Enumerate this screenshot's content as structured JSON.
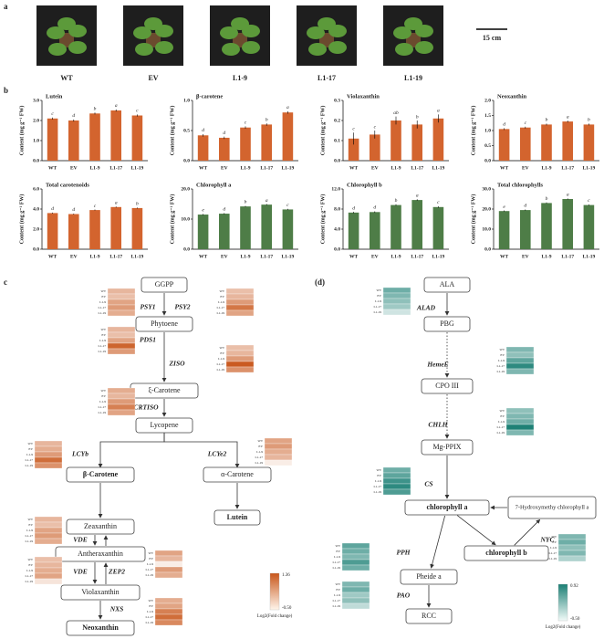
{
  "panel_a": {
    "label": "a",
    "samples": [
      "WT",
      "EV",
      "L1-9",
      "L1-17",
      "L1-19"
    ],
    "scale_bar": "15 cm"
  },
  "panel_b_label": "b",
  "chart_data": [
    {
      "type": "bar",
      "title": "Lutein",
      "y_label": "Content (mg g⁻¹ FW)",
      "categories": [
        "WT",
        "EV",
        "L1-9",
        "L1-17",
        "L1-19"
      ],
      "values": [
        2.1,
        2.0,
        2.35,
        2.5,
        2.25
      ],
      "errors": [
        0.05,
        0.05,
        0.05,
        0.05,
        0.05
      ],
      "letters": [
        "c",
        "d",
        "b",
        "a",
        "c"
      ],
      "color": "#d3642e",
      "ylim": [
        0,
        3
      ],
      "yticks": [
        {
          "value": 0,
          "label": "0.0"
        },
        {
          "value": 1,
          "label": "1.0"
        },
        {
          "value": 2,
          "label": "2.0"
        },
        {
          "value": 3,
          "label": "3.0"
        }
      ]
    },
    {
      "type": "bar",
      "title": "β-carotene",
      "y_label": "Content (mg g⁻¹ FW)",
      "categories": [
        "WT",
        "EV",
        "L1-9",
        "L1-17",
        "L1-19"
      ],
      "values": [
        0.42,
        0.38,
        0.55,
        0.6,
        0.8
      ],
      "errors": [
        0.02,
        0.02,
        0.02,
        0.02,
        0.02
      ],
      "letters": [
        "d",
        "d",
        "c",
        "b",
        "a"
      ],
      "color": "#d3642e",
      "ylim": [
        0,
        1
      ],
      "yticks": [
        {
          "value": 0,
          "label": "0.0"
        },
        {
          "value": 0.5,
          "label": "0.5"
        },
        {
          "value": 1,
          "label": "1.0"
        }
      ]
    },
    {
      "type": "bar",
      "title": "Violaxanthin",
      "y_label": "Content (mg g⁻¹ FW)",
      "categories": [
        "WT",
        "EV",
        "L1-9",
        "L1-17",
        "L1-19"
      ],
      "values": [
        0.11,
        0.13,
        0.2,
        0.18,
        0.21
      ],
      "errors": [
        0.03,
        0.02,
        0.02,
        0.02,
        0.02
      ],
      "letters": [
        "c",
        "c",
        "ab",
        "b",
        "a"
      ],
      "color": "#d3642e",
      "ylim": [
        0,
        0.3
      ],
      "yticks": [
        {
          "value": 0,
          "label": "0.0"
        },
        0.1,
        0.2,
        0.3
      ]
    },
    {
      "type": "bar",
      "title": "Neoxanthin",
      "y_label": "Content (mg g⁻¹ FW)",
      "categories": [
        "WT",
        "EV",
        "L1-9",
        "L1-17",
        "L1-19"
      ],
      "values": [
        1.05,
        1.1,
        1.2,
        1.3,
        1.2
      ],
      "errors": [
        0.03,
        0.03,
        0.03,
        0.03,
        0.03
      ],
      "letters": [
        "d",
        "c",
        "b",
        "a",
        "b"
      ],
      "color": "#d3642e",
      "ylim": [
        0,
        2
      ],
      "yticks": [
        {
          "value": 0,
          "label": "0.0"
        },
        0.5,
        {
          "value": 1,
          "label": "1.0"
        },
        1.5,
        {
          "value": 2,
          "label": "2.0"
        }
      ]
    },
    {
      "type": "bar",
      "title": "Total carotenoids",
      "y_label": "Content (mg g⁻¹ FW)",
      "categories": [
        "WT",
        "EV",
        "L1-9",
        "L1-17",
        "L1-19"
      ],
      "values": [
        3.6,
        3.5,
        3.9,
        4.2,
        4.1
      ],
      "errors": [
        0.05,
        0.05,
        0.05,
        0.05,
        0.05
      ],
      "letters": [
        "d",
        "d",
        "c",
        "a",
        "b"
      ],
      "color": "#d3642e",
      "ylim": [
        0,
        6
      ],
      "yticks": [
        {
          "value": 0,
          "label": "0.0"
        },
        {
          "value": 2,
          "label": "2.0"
        },
        {
          "value": 4,
          "label": "4.0"
        },
        {
          "value": 6,
          "label": "6.0"
        }
      ]
    },
    {
      "type": "bar",
      "title": "Chlorophyll a",
      "y_label": "Content (mg g⁻¹ FW)",
      "categories": [
        "WT",
        "EV",
        "L1-9",
        "L1-17",
        "L1-19"
      ],
      "values": [
        11.5,
        11.8,
        14.2,
        14.8,
        13.2
      ],
      "errors": [
        0.2,
        0.2,
        0.2,
        0.2,
        0.2
      ],
      "letters": [
        "e",
        "d",
        "b",
        "a",
        "c"
      ],
      "color": "#4e7d47",
      "ylim": [
        0,
        20
      ],
      "yticks": [
        {
          "value": 0,
          "label": "0.0"
        },
        {
          "value": 10,
          "label": "10.0"
        },
        {
          "value": 20,
          "label": "20.0"
        }
      ]
    },
    {
      "type": "bar",
      "title": "Chlorophyll b",
      "y_label": "Content (mg g⁻¹ FW)",
      "categories": [
        "WT",
        "EV",
        "L1-9",
        "L1-17",
        "L1-19"
      ],
      "values": [
        7.3,
        7.4,
        8.8,
        9.8,
        8.4
      ],
      "errors": [
        0.15,
        0.15,
        0.15,
        0.15,
        0.15
      ],
      "letters": [
        "d",
        "d",
        "b",
        "a",
        "c"
      ],
      "color": "#4e7d47",
      "ylim": [
        0,
        12
      ],
      "yticks": [
        {
          "value": 0,
          "label": "0.0"
        },
        {
          "value": 4,
          "label": "4.0"
        },
        {
          "value": 8,
          "label": "8.0"
        },
        {
          "value": 12,
          "label": "12.0"
        }
      ]
    },
    {
      "type": "bar",
      "title": "Total chlorophylls",
      "y_label": "Content (mg g⁻¹ FW)",
      "categories": [
        "WT",
        "EV",
        "L1-9",
        "L1-17",
        "L1-19"
      ],
      "values": [
        19,
        19.5,
        23,
        25,
        22
      ],
      "errors": [
        0.3,
        0.3,
        0.3,
        0.3,
        0.3
      ],
      "letters": [
        "e",
        "d",
        "b",
        "a",
        "c"
      ],
      "color": "#4e7d47",
      "ylim": [
        0,
        30
      ],
      "yticks": [
        {
          "value": 0,
          "label": "0.0"
        },
        {
          "value": 10,
          "label": "10.0"
        },
        {
          "value": 20,
          "label": "20.0"
        },
        {
          "value": 30,
          "label": "30.0"
        }
      ]
    }
  ],
  "panel_c": {
    "label": "c",
    "nodes": [
      {
        "label": "GGPP",
        "highlight": false
      },
      {
        "label": "Phytoene",
        "highlight": false
      },
      {
        "label": "ξ-Carotene",
        "highlight": false
      },
      {
        "label": "Lycopene",
        "highlight": false
      },
      {
        "label": "β-Carotene",
        "highlight": true
      },
      {
        "label": "α-Carotene",
        "highlight": false
      },
      {
        "label": "Lutein",
        "highlight": true
      },
      {
        "label": "Zeaxanthin",
        "highlight": false
      },
      {
        "label": "Antheraxanthin",
        "highlight": false
      },
      {
        "label": "Violaxanthin",
        "highlight": false
      },
      {
        "label": "Neoxanthin",
        "highlight": true
      }
    ],
    "rows": [
      "WT",
      "EV",
      "L1-9",
      "L1-17",
      "L1-19"
    ],
    "genes": [
      {
        "name": "PSY1",
        "values": [
          0.3,
          0.2,
          0.5,
          0.6,
          0.4
        ]
      },
      {
        "name": "PSY2",
        "values": [
          0.2,
          0.3,
          0.6,
          1.0,
          0.5
        ]
      },
      {
        "name": "PDS1",
        "values": [
          0.3,
          0.2,
          0.5,
          1.2,
          0.6
        ]
      },
      {
        "name": "ZISO",
        "values": [
          0.2,
          0.3,
          0.6,
          1.3,
          0.7
        ]
      },
      {
        "name": "CRTISO",
        "values": [
          0.4,
          0.3,
          0.6,
          0.9,
          0.5
        ]
      },
      {
        "name": "LCYb",
        "values": [
          0.3,
          0.4,
          0.6,
          1.1,
          0.7
        ]
      },
      {
        "name": "LCYe2",
        "values": [
          0.5,
          0.6,
          0.4,
          0.3,
          -0.3
        ]
      },
      {
        "name": "VDE",
        "values": [
          0.3,
          0.2,
          0.5,
          0.6,
          0.4
        ]
      },
      {
        "name": "VDE",
        "values": [
          0.2,
          0.3,
          0.4,
          0.5,
          -0.2
        ]
      },
      {
        "name": "ZEP2",
        "values": [
          0.5,
          0.3,
          -0.3,
          0.6,
          0.4
        ]
      },
      {
        "name": "NXS",
        "values": [
          0.4,
          0.5,
          0.9,
          1.1,
          0.8
        ]
      }
    ],
    "color": "#c8561a",
    "scale_max": {
      "value": 1.36,
      "label": "1.36"
    },
    "scale_min": {
      "value": -0.5,
      "label": "-0.50"
    },
    "scale_title": "Log2(Fold change)"
  },
  "panel_d": {
    "label": "(d)",
    "nodes": [
      {
        "label": "ALA",
        "highlight": false
      },
      {
        "label": "PBG",
        "highlight": false
      },
      {
        "label": "CPO III",
        "highlight": false
      },
      {
        "label": "Mg-PPIX",
        "highlight": false
      },
      {
        "label": "chlorophyll a",
        "highlight": true
      },
      {
        "label": "7-Hydroxymethy chlorophyll a",
        "highlight": false
      },
      {
        "label": "chlorophyll b",
        "highlight": true
      },
      {
        "label": "Pheide a",
        "highlight": false
      },
      {
        "label": "RCC",
        "highlight": false
      }
    ],
    "rows": [
      "WT",
      "EV",
      "L1-9",
      "L1-17",
      "L1-19"
    ],
    "genes": [
      {
        "name": "ALAD",
        "values": [
          0.4,
          0.3,
          0.2,
          0.1,
          -0.2
        ]
      },
      {
        "name": "HemeE",
        "values": [
          0.3,
          0.2,
          0.5,
          0.8,
          0.3
        ]
      },
      {
        "name": "CHLH",
        "values": [
          0.2,
          0.3,
          0.4,
          0.9,
          0.3
        ]
      },
      {
        "name": "CS",
        "values": [
          0.4,
          0.5,
          0.7,
          0.8,
          0.6
        ]
      },
      {
        "name": "NYC",
        "values": [
          0.3,
          0.4,
          0.2,
          0.3,
          0.0
        ]
      },
      {
        "name": "PPH",
        "values": [
          0.5,
          0.4,
          0.3,
          0.6,
          0.4
        ]
      },
      {
        "name": "PAO",
        "values": [
          0.3,
          0.4,
          0.1,
          0.2,
          -0.1
        ]
      }
    ],
    "color": "#1b7f74",
    "scale_max": {
      "value": 0.92,
      "label": "0.92"
    },
    "scale_min": {
      "value": -0.5,
      "label": "-0.50"
    },
    "scale_title": "Log2(Fold change)"
  }
}
